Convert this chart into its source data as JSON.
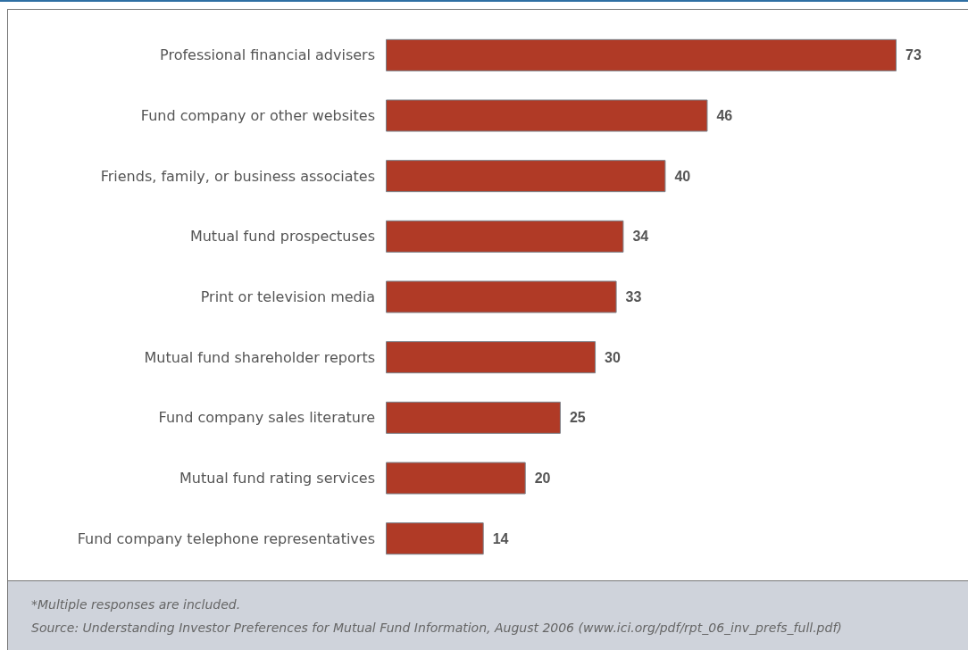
{
  "chart_data": {
    "type": "bar",
    "orientation": "horizontal",
    "categories": [
      "Professional financial advisers",
      "Fund company or other websites",
      "Friends, family, or business associates",
      "Mutual fund prospectuses",
      "Print or television media",
      "Mutual fund shareholder reports",
      "Fund company sales literature",
      "Mutual fund rating services",
      "Fund company telephone representatives"
    ],
    "values": [
      73,
      46,
      40,
      34,
      33,
      30,
      25,
      20,
      14
    ],
    "color": "#b03a26",
    "data_labels": true,
    "annotations": [
      "*Multiple responses are included.",
      "Source: Understanding Investor Preferences for Mutual Fund Information, August 2006 (www.ici.org/pdf/rpt_06_inv_prefs_full.pdf)"
    ]
  }
}
